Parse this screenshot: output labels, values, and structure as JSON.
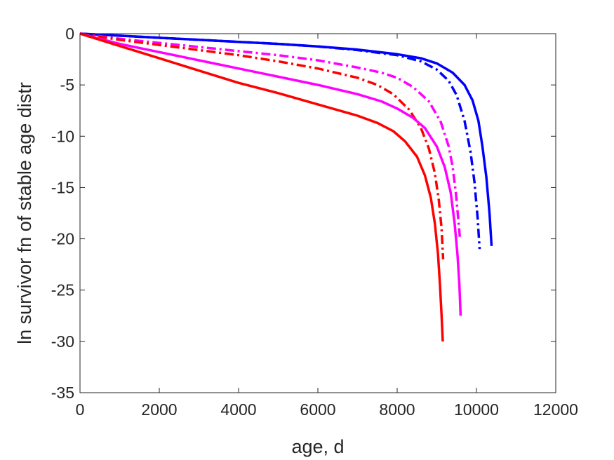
{
  "chart_data": {
    "type": "line",
    "title": "",
    "xlabel": "age, d",
    "ylabel": "ln survivor fn of stable age distr",
    "xlim": [
      0,
      12000
    ],
    "ylim": [
      -35,
      0
    ],
    "xticks": [
      0,
      2000,
      4000,
      6000,
      8000,
      10000,
      12000
    ],
    "yticks": [
      0,
      -5,
      -10,
      -15,
      -20,
      -25,
      -30,
      -35
    ],
    "xtick_labels": [
      "0",
      "2000",
      "4000",
      "6000",
      "8000",
      "10000",
      "12000"
    ],
    "ytick_labels": [
      "0",
      "-5",
      "-10",
      "-15",
      "-20",
      "-25",
      "-30",
      "-35"
    ],
    "grid": false,
    "series": [
      {
        "color": "#0000ff",
        "style": "solid",
        "x": [
          0,
          1000,
          2000,
          3000,
          4000,
          5000,
          6000,
          7000,
          8000,
          8600,
          9000,
          9400,
          9700,
          9900,
          10050,
          10150,
          10250,
          10330,
          10380
        ],
        "y": [
          0,
          -0.2,
          -0.4,
          -0.6,
          -0.8,
          -1.0,
          -1.25,
          -1.55,
          -2.0,
          -2.4,
          -2.9,
          -3.8,
          -5.0,
          -6.5,
          -8.5,
          -11.0,
          -14.0,
          -17.5,
          -20.7
        ]
      },
      {
        "color": "#0000ff",
        "style": "dashdot",
        "x": [
          0,
          1000,
          2000,
          3000,
          4000,
          5000,
          6000,
          7000,
          8000,
          8600,
          9000,
          9300,
          9500,
          9700,
          9850,
          9950,
          10030,
          10080
        ],
        "y": [
          0,
          -0.2,
          -0.4,
          -0.6,
          -0.8,
          -1.0,
          -1.25,
          -1.6,
          -2.1,
          -2.7,
          -3.5,
          -4.6,
          -6.0,
          -8.5,
          -11.5,
          -14.5,
          -18.0,
          -21.0
        ]
      },
      {
        "color": "#ff00ff",
        "style": "dashdot",
        "x": [
          0,
          1000,
          2000,
          3000,
          4000,
          5000,
          6000,
          7000,
          7600,
          8000,
          8400,
          8800,
          9100,
          9300,
          9400,
          9480,
          9540,
          9580
        ],
        "y": [
          0,
          -0.5,
          -0.9,
          -1.3,
          -1.7,
          -2.1,
          -2.6,
          -3.3,
          -3.8,
          -4.3,
          -5.2,
          -6.6,
          -8.6,
          -11.0,
          -13.0,
          -15.5,
          -18.0,
          -19.8
        ]
      },
      {
        "color": "#ff0000",
        "style": "dashdot",
        "x": [
          0,
          1000,
          2000,
          3000,
          4000,
          5000,
          6000,
          7000,
          7500,
          7900,
          8300,
          8600,
          8800,
          8950,
          9050,
          9120,
          9160
        ],
        "y": [
          0,
          -0.6,
          -1.1,
          -1.6,
          -2.1,
          -2.7,
          -3.4,
          -4.3,
          -5.0,
          -5.9,
          -7.4,
          -9.2,
          -11.2,
          -13.6,
          -16.2,
          -19.0,
          -22.0
        ]
      },
      {
        "color": "#ff00ff",
        "style": "solid",
        "x": [
          0,
          1000,
          2000,
          3000,
          4000,
          5000,
          6000,
          7000,
          7600,
          8000,
          8400,
          8700,
          9000,
          9200,
          9350,
          9450,
          9520,
          9570,
          9600
        ],
        "y": [
          0,
          -1.0,
          -1.8,
          -2.6,
          -3.4,
          -4.2,
          -5.0,
          -5.9,
          -6.6,
          -7.3,
          -8.2,
          -9.2,
          -11.0,
          -13.0,
          -15.5,
          -18.5,
          -21.5,
          -24.5,
          -27.5
        ]
      },
      {
        "color": "#ff0000",
        "style": "solid",
        "x": [
          0,
          1000,
          2000,
          3000,
          4000,
          5000,
          6000,
          7000,
          7500,
          7900,
          8200,
          8500,
          8700,
          8850,
          8950,
          9030,
          9080,
          9120,
          9150
        ],
        "y": [
          0,
          -1.2,
          -2.4,
          -3.6,
          -4.8,
          -5.8,
          -6.9,
          -8.0,
          -8.7,
          -9.5,
          -10.5,
          -12.0,
          -13.8,
          -16.0,
          -18.5,
          -21.5,
          -24.5,
          -27.5,
          -30.0
        ]
      }
    ]
  }
}
